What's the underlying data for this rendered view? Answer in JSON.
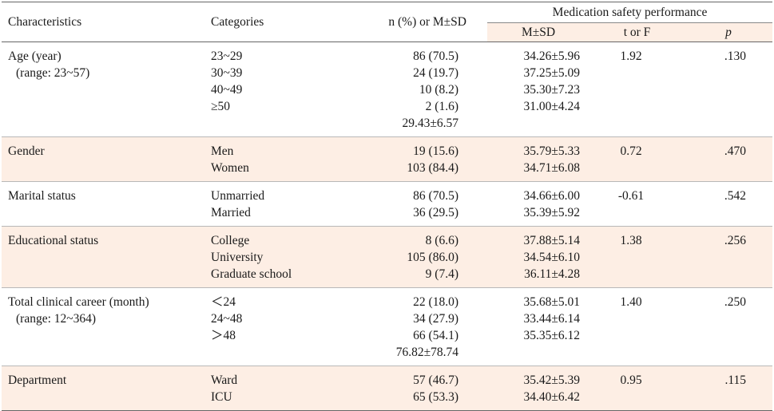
{
  "header": {
    "characteristics": "Characteristics",
    "categories": "Categories",
    "n": "n (%) or M±SD",
    "group": "Medication safety performance",
    "msd": "M±SD",
    "torf": "t or F",
    "p": "p"
  },
  "rows": [
    {
      "label": "Age (year)",
      "sub": "(range: 23~57)",
      "categories": [
        "23~29",
        "30~39",
        "40~49",
        "≥50"
      ],
      "n": [
        "86 (70.5)",
        "24 (19.7)",
        "10 (8.2)",
        "2 (1.6)",
        "29.43±6.57"
      ],
      "msd": [
        "34.26±5.96",
        "37.25±5.09",
        "35.30±7.23",
        "31.00±4.24"
      ],
      "t": "1.92",
      "p": ".130",
      "shade": false
    },
    {
      "label": "Gender",
      "sub": "",
      "categories": [
        "Men",
        "Women"
      ],
      "n": [
        "19 (15.6)",
        "103 (84.4)"
      ],
      "msd": [
        "35.79±5.33",
        "34.71±6.08"
      ],
      "t": "0.72",
      "p": ".470",
      "shade": true
    },
    {
      "label": "Marital status",
      "sub": "",
      "categories": [
        "Unmarried",
        "Married"
      ],
      "n": [
        "86 (70.5)",
        "36 (29.5)"
      ],
      "msd": [
        "34.66±6.00",
        "35.39±5.92"
      ],
      "t": "-0.61",
      "p": ".542",
      "shade": false
    },
    {
      "label": "Educational status",
      "sub": "",
      "categories": [
        "College",
        "University",
        "Graduate school"
      ],
      "n": [
        "8 (6.6)",
        "105 (86.0)",
        "9 (7.4)"
      ],
      "msd": [
        "37.88±5.14",
        "34.54±6.10",
        "36.11±4.28"
      ],
      "t": "1.38",
      "p": ".256",
      "shade": true
    },
    {
      "label": "Total clinical career (month)",
      "sub": "(range: 12~364)",
      "categories": [
        "＜24",
        "24~48",
        "＞48"
      ],
      "n": [
        "22 (18.0)",
        "34 (27.9)",
        "66 (54.1)",
        "76.82±78.74"
      ],
      "msd": [
        "35.68±5.01",
        "33.44±6.14",
        "35.35±6.12"
      ],
      "t": "1.40",
      "p": ".250",
      "shade": false
    },
    {
      "label": "Department",
      "sub": "",
      "categories": [
        "Ward",
        "ICU"
      ],
      "n": [
        "57 (46.7)",
        "65 (53.3)"
      ],
      "msd": [
        "35.42±5.39",
        "34.40±6.42"
      ],
      "t": "0.95",
      "p": ".115",
      "shade": true
    }
  ]
}
